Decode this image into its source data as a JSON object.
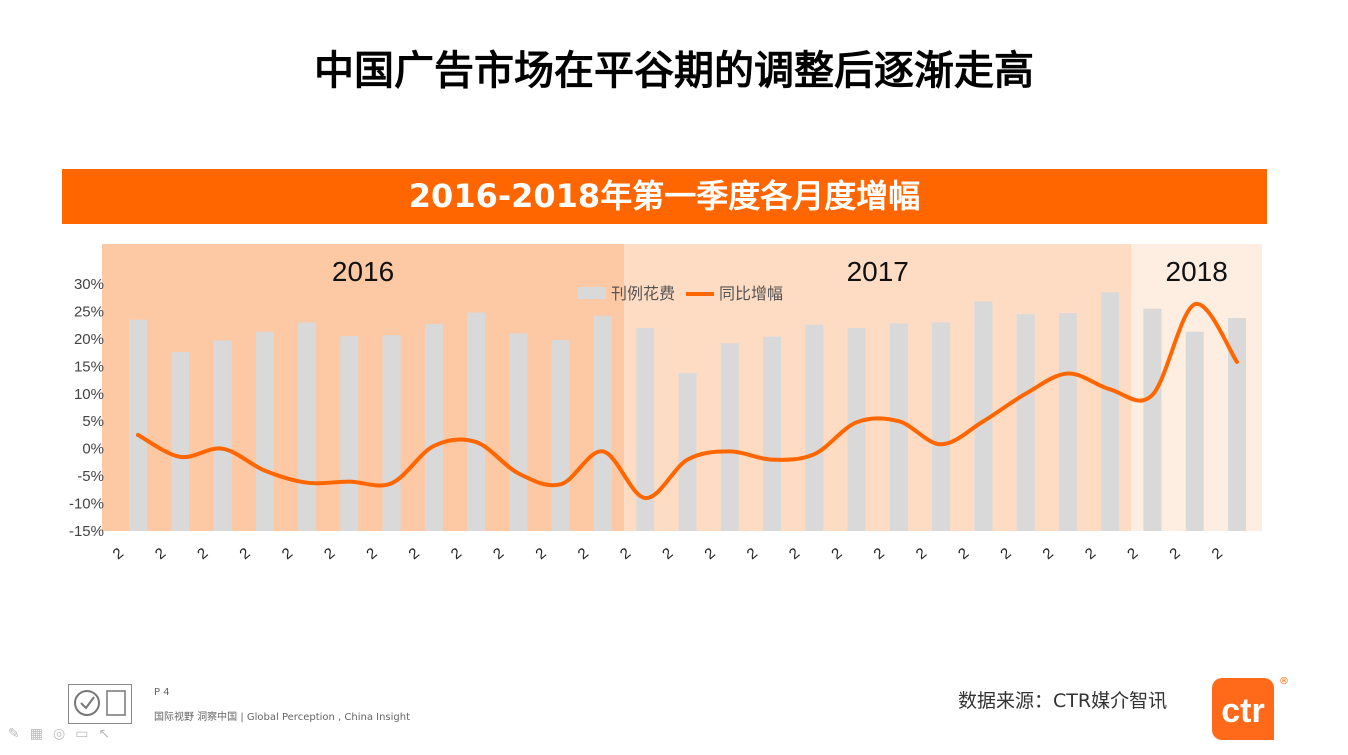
{
  "page": {
    "title": "中国广告市场在平谷期的调整后逐渐走高",
    "banner": "2016-2018年第一季度各月度增幅",
    "footer_page": "P 4",
    "footer_slogan": "国际视野 洞察中国 |  Global Perception , China Insight",
    "source": "数据来源：CTR媒介智讯",
    "logo_text": "ctr",
    "reg_mark": "®"
  },
  "colors": {
    "accent": "#ff6600",
    "bar": "#d9d9d9",
    "band_2016": "#fdc9a4",
    "band_2017": "#fedcc4",
    "band_2018": "#feeee2"
  },
  "chart_data": {
    "type": "bar",
    "title": "",
    "xlabel": "",
    "ylabel": "",
    "ylim": [
      -0.15,
      0.3
    ],
    "yticks": [
      "30%",
      "25%",
      "20%",
      "15%",
      "10%",
      "5%",
      "0%",
      "-5%",
      "-10%",
      "-15%"
    ],
    "grid": false,
    "legend": {
      "placement": "top-center",
      "entries": [
        "刊例花费",
        "同比增幅"
      ]
    },
    "periods": [
      {
        "label": "2016",
        "count": 12
      },
      {
        "label": "2017",
        "count": 12
      },
      {
        "label": "2018",
        "count": 3
      }
    ],
    "categories": [
      "2",
      "2",
      "2",
      "2",
      "2",
      "2",
      "2",
      "2",
      "2",
      "2",
      "2",
      "2",
      "2",
      "2",
      "2",
      "2",
      "2",
      "2",
      "2",
      "2",
      "2",
      "2",
      "2",
      "2",
      "2",
      "2",
      "2"
    ],
    "series": [
      {
        "name": "刊例花费",
        "type": "bar",
        "values": [
          0.235,
          0.176,
          0.197,
          0.213,
          0.23,
          0.205,
          0.207,
          0.227,
          0.248,
          0.21,
          0.198,
          0.242,
          0.22,
          0.138,
          0.192,
          0.204,
          0.226,
          0.22,
          0.228,
          0.23,
          0.268,
          0.245,
          0.247,
          0.285,
          0.255,
          0.213,
          0.238
        ]
      },
      {
        "name": "同比增幅",
        "type": "line",
        "values": [
          0.025,
          -0.015,
          0.0,
          -0.04,
          -0.062,
          -0.06,
          -0.063,
          0.005,
          0.012,
          -0.045,
          -0.065,
          -0.005,
          -0.09,
          -0.02,
          -0.005,
          -0.02,
          -0.01,
          0.048,
          0.05,
          0.008,
          0.05,
          0.1,
          0.137,
          0.108,
          0.098,
          0.263,
          0.158
        ]
      }
    ]
  }
}
